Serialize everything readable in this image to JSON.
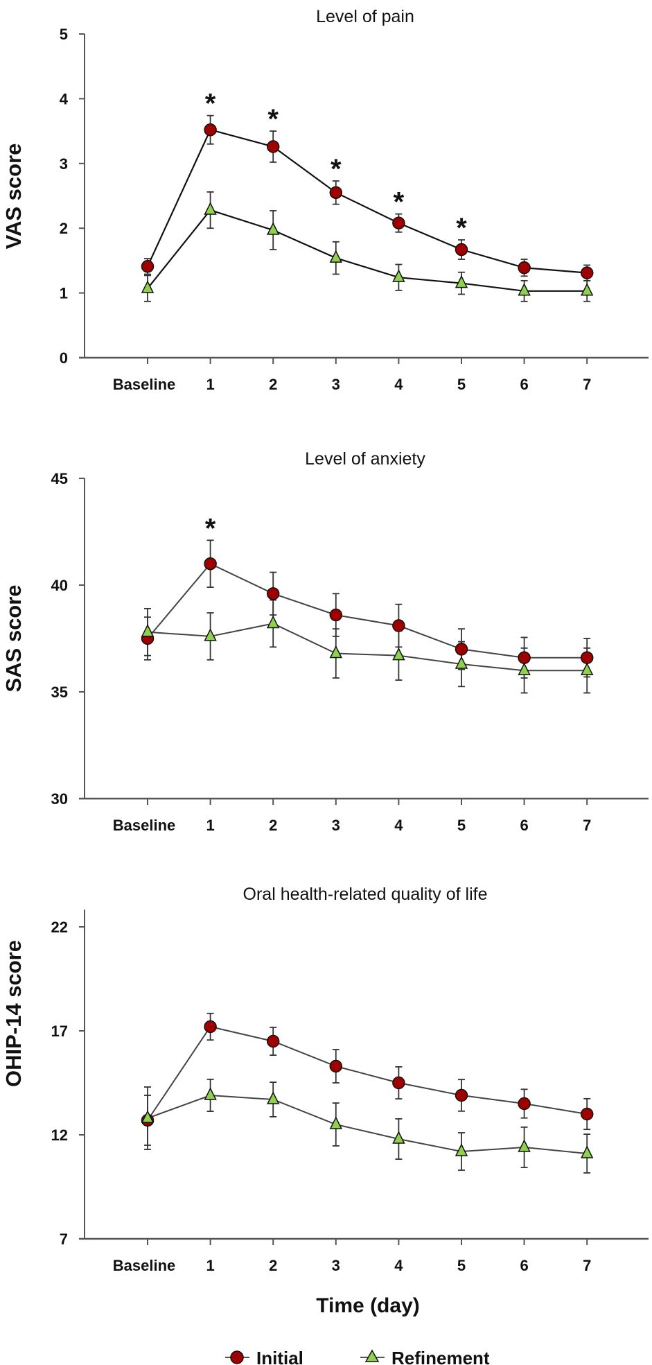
{
  "colors": {
    "initial": "#9e0000",
    "refinement": "#8fd14f",
    "axis": "#555555"
  },
  "legend": {
    "position": "bottom",
    "items": [
      {
        "label": "Initial",
        "marker": "circle",
        "color": "#9e0000"
      },
      {
        "label": "Refinement",
        "marker": "triangle",
        "color": "#8fd14f"
      }
    ]
  },
  "shared_xlabel": "Time (day)",
  "chart_data": [
    {
      "type": "line",
      "title": "Level of pain",
      "ylabel": "VAS score",
      "xlabel": "Time (day)",
      "categories": [
        "Baseline",
        "1",
        "2",
        "3",
        "4",
        "5",
        "6",
        "7"
      ],
      "ylim": [
        0,
        5
      ],
      "yticks": [
        "0",
        "1",
        "2",
        "3",
        "4",
        "5"
      ],
      "grid": false,
      "significance": [
        "",
        "*",
        "*",
        "*",
        "*",
        "*",
        "",
        ""
      ],
      "series": [
        {
          "name": "Initial",
          "values": [
            1.41,
            3.52,
            3.26,
            2.55,
            2.08,
            1.67,
            1.39,
            1.31
          ],
          "errors": [
            0.12,
            0.22,
            0.24,
            0.18,
            0.14,
            0.15,
            0.13,
            0.12
          ]
        },
        {
          "name": "Refinement",
          "values": [
            1.07,
            2.28,
            1.97,
            1.54,
            1.24,
            1.15,
            1.03,
            1.03
          ],
          "errors": [
            0.2,
            0.28,
            0.3,
            0.25,
            0.2,
            0.17,
            0.16,
            0.16
          ]
        }
      ]
    },
    {
      "type": "line",
      "title": "Level of anxiety",
      "ylabel": "SAS score",
      "xlabel": "Time (day)",
      "categories": [
        "Baseline",
        "1",
        "2",
        "3",
        "4",
        "5",
        "6",
        "7"
      ],
      "ylim": [
        30,
        45
      ],
      "yticks": [
        "30",
        "35",
        "40",
        "45"
      ],
      "grid": false,
      "significance": [
        "",
        "*",
        "",
        "",
        "",
        "",
        "",
        ""
      ],
      "series": [
        {
          "name": "Initial",
          "values": [
            37.5,
            41.0,
            39.6,
            38.6,
            38.1,
            37.0,
            36.6,
            36.6
          ],
          "errors": [
            1.0,
            1.1,
            1.0,
            1.0,
            1.0,
            0.95,
            0.95,
            0.9
          ]
        },
        {
          "name": "Refinement",
          "values": [
            37.8,
            37.6,
            38.2,
            36.8,
            36.7,
            36.3,
            36.0,
            36.0
          ],
          "errors": [
            1.1,
            1.1,
            1.1,
            1.15,
            1.15,
            1.05,
            1.05,
            1.05
          ]
        }
      ]
    },
    {
      "type": "line",
      "title": "Oral health-related quality of life",
      "ylabel": "OHIP-14 score",
      "xlabel": "Time (day)",
      "categories": [
        "Baseline",
        "1",
        "2",
        "3",
        "4",
        "5",
        "6",
        "7"
      ],
      "ylim": [
        7,
        22
      ],
      "yticks": [
        "7",
        "12",
        "17",
        "22"
      ],
      "grid": false,
      "significance": [
        "",
        "",
        "",
        "",
        "",
        "",
        "",
        ""
      ],
      "series": [
        {
          "name": "Initial",
          "values": [
            12.7,
            17.2,
            16.5,
            15.3,
            14.5,
            13.9,
            13.5,
            13.0
          ],
          "errors": [
            1.2,
            0.64,
            0.67,
            0.8,
            0.77,
            0.76,
            0.69,
            0.74
          ]
        },
        {
          "name": "Refinement",
          "values": [
            12.8,
            13.9,
            13.7,
            12.5,
            11.8,
            11.2,
            11.4,
            11.1
          ],
          "errors": [
            1.5,
            0.77,
            0.83,
            1.03,
            0.97,
            0.9,
            0.97,
            0.93
          ]
        }
      ]
    }
  ]
}
